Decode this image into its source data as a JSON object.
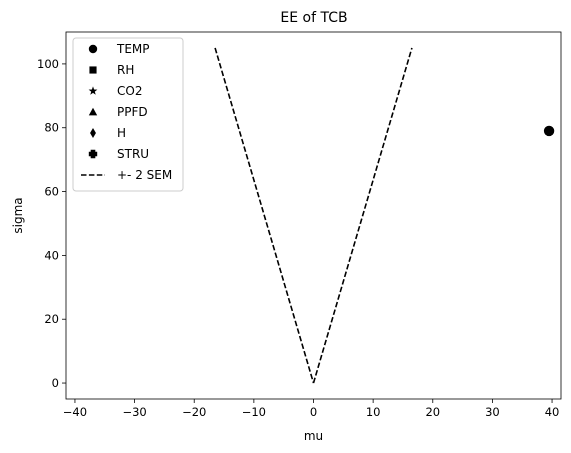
{
  "chart_data": {
    "type": "scatter",
    "title": "EE of TCB",
    "xlabel": "mu",
    "ylabel": "sigma",
    "xlim": [
      -41.5,
      41.5
    ],
    "ylim": [
      -5,
      110
    ],
    "xticks": [
      -40,
      -30,
      -20,
      -10,
      0,
      10,
      20,
      30,
      40
    ],
    "yticks": [
      0,
      20,
      40,
      60,
      80,
      100
    ],
    "grid": false,
    "legend_placement": "top-left",
    "series": [
      {
        "name": "TEMP",
        "marker": "circle",
        "points": [
          [
            39.5,
            79
          ]
        ]
      },
      {
        "name": "RH",
        "marker": "square",
        "points": []
      },
      {
        "name": "CO2",
        "marker": "star",
        "points": []
      },
      {
        "name": "PPFD",
        "marker": "triangle",
        "points": []
      },
      {
        "name": "H",
        "marker": "diamond",
        "points": []
      },
      {
        "name": "STRU",
        "marker": "plus",
        "points": []
      }
    ],
    "lines": [
      {
        "name": "+- 2 SEM",
        "style": "dashed",
        "color": "#000000",
        "segments": [
          [
            [
              -16.5,
              105
            ],
            [
              0,
              0
            ]
          ],
          [
            [
              0,
              0
            ],
            [
              16.5,
              105
            ]
          ]
        ]
      }
    ],
    "colors": {
      "marker": "#000000",
      "axis": "#000000"
    }
  }
}
